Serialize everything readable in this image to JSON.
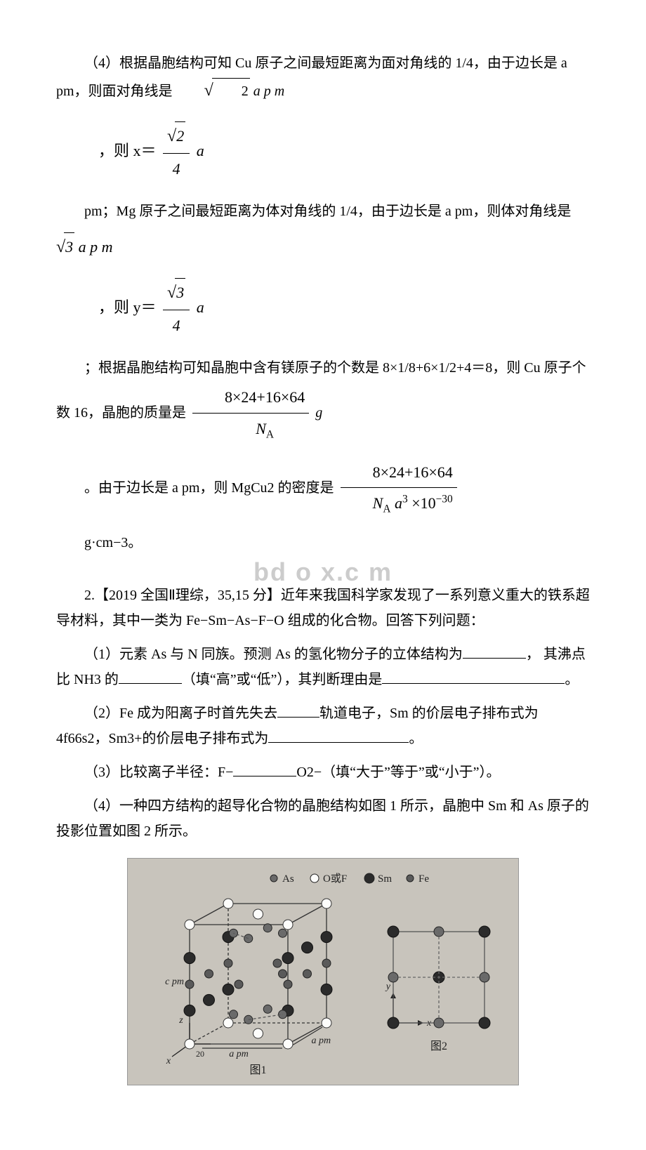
{
  "p1": {
    "intro": "（4）根据晶胞结构可知 Cu 原子之间最短距离为面对角线的 1/4，由于边长是 a pm，则面对角线是",
    "sqrt_arg": "2",
    "sqrt_suffix": " a p m"
  },
  "f1": {
    "prefix": "，则 x＝",
    "num_sqrt": "2",
    "den": "4",
    "rhs": "a"
  },
  "p2": {
    "text": "pm；Mg 原子之间最短距离为体对角线的 1/4，由于边长是 a pm，则体对角线是",
    "sqrt_arg": "3",
    "sqrt_suffix": " a p m"
  },
  "f2": {
    "prefix": "，则 y＝",
    "num_sqrt": "3",
    "den": "4",
    "rhs": "a"
  },
  "p3": {
    "text": "；根据晶胞结构可知晶胞中含有镁原子的个数是 8×1/8+6×1/2+4＝8，则 Cu 原子个数 16，晶胞的质量是",
    "frac_num": "8×24+16×64",
    "frac_den": "N",
    "frac_den_sub": "A",
    "frac_rhs": "g"
  },
  "p4": {
    "text": "。由于边长是 a pm，则 MgCu2 的密度是",
    "frac_num": "8×24+16×64",
    "frac_den_a": "N",
    "frac_den_a_sub": "A",
    "frac_den_b": "a",
    "frac_den_b_sup": "3",
    "frac_den_c": "×10",
    "frac_den_c_sup": "−30"
  },
  "p5": {
    "text": "g·cm−3。"
  },
  "watermark": "bd  o   x.c   m",
  "q2": {
    "title": "2.【2019 全国Ⅱ理综，35,15 分】近年来我国科学家发现了一系列意义重大的铁系超导材料，其中一类为 Fe−Sm−As−F−O 组成的化合物。回答下列问题：",
    "q1a": "（1）元素 As 与 N 同族。预测 As 的氢化物分子的立体结构为",
    "q1b": "， 其沸点比 NH3 的",
    "q1c": "（填“高”或“低”），其判断理由是",
    "q1d": "。",
    "q2a": "（2）Fe 成为阳离子时首先失去",
    "q2b": "轨道电子，Sm 的价层电子排布式为 4f66s2，Sm3+的价层电子排布式为",
    "q2c": "。",
    "q3a": "（3）比较离子半径：F−",
    "q3b": "O2−（填“大于”等于”或“小于”）。",
    "q4": "（4）一种四方结构的超导化合物的晶胞结构如图 1 所示，晶胞中 Sm 和 As 原子的投影位置如图 2 所示。"
  },
  "figure": {
    "background": "#c8c4bc",
    "legend": [
      {
        "label": "As",
        "fill": "#6a6a6a",
        "r": 5
      },
      {
        "label": "O或F",
        "fill": "#fdfdfb",
        "r": 6
      },
      {
        "label": "Sm",
        "fill": "#2b2b2b",
        "r": 7
      },
      {
        "label": "Fe",
        "fill": "#5a5a5a",
        "r": 5
      }
    ],
    "fig1": {
      "caption": "图1",
      "axis_labels": {
        "x": "x",
        "y": "y",
        "z": "z"
      },
      "edge_labels": {
        "c": "c pm",
        "a1": "a pm",
        "a2": "a pm"
      },
      "cube": {
        "stroke": "#333",
        "stroke_dash": "#666",
        "w": 140,
        "h": 170,
        "depth_dx": 55,
        "depth_dy": -30
      },
      "atoms": {
        "corner_front": {
          "fill": "#fdfdfb",
          "r": 7
        },
        "corner_back": {
          "fill": "#fdfdfb",
          "r": 7
        },
        "edge_mid": {
          "fill": "#2b2b2b",
          "r": 8
        },
        "face_sm": {
          "fill": "#2b2b2b",
          "r": 8
        },
        "as_upper": {
          "fill": "#6a6a6a",
          "r": 6
        },
        "as_lower": {
          "fill": "#6a6a6a",
          "r": 6
        },
        "fe_mid": {
          "fill": "#5a5a5a",
          "r": 6
        }
      }
    },
    "fig2": {
      "caption": "图2",
      "axis_labels": {
        "x": "x",
        "y": "y"
      },
      "grid": {
        "size": 130,
        "stroke": "#555"
      },
      "sm_points": {
        "fill": "#2b2b2b",
        "r": 8
      },
      "as_points": {
        "fill": "#6a6a6a",
        "r": 7
      }
    }
  }
}
